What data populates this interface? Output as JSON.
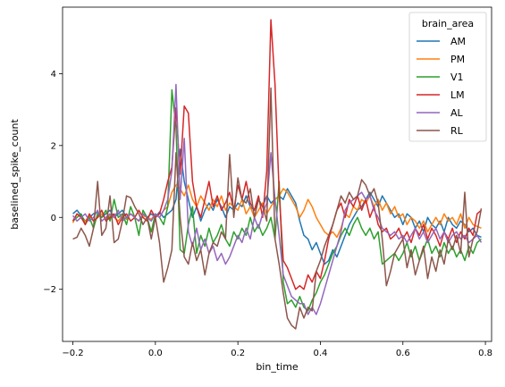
{
  "chart_data": {
    "type": "line",
    "title": "",
    "xlabel": "bin_time",
    "ylabel": "baselined_spike_count",
    "xlim": [
      -0.225,
      0.815
    ],
    "ylim": [
      -3.45,
      5.85
    ],
    "xticks": [
      -0.2,
      0.0,
      0.2,
      0.4,
      0.6,
      0.8
    ],
    "xtick_labels": [
      "−0.2",
      "0.0",
      "0.2",
      "0.4",
      "0.6",
      "0.8"
    ],
    "yticks": [
      -2,
      0,
      2,
      4
    ],
    "ytick_labels": [
      "−2",
      "0",
      "2",
      "4"
    ],
    "grid": false,
    "legend": {
      "title": "brain_area",
      "placement": "top-right"
    },
    "x_start": -0.2,
    "x_step": 0.01,
    "series": [
      {
        "name": "AM",
        "color": "#1f77b4",
        "values": [
          0.1,
          0.2,
          0.05,
          -0.1,
          0.0,
          0.1,
          0.15,
          0.0,
          0.1,
          0.2,
          0.0,
          0.1,
          0.2,
          0.0,
          0.1,
          0.0,
          -0.1,
          0.1,
          0.0,
          0.1,
          0.0,
          0.15,
          0.0,
          0.1,
          0.2,
          0.5,
          1.9,
          1.0,
          0.5,
          0.0,
          0.3,
          -0.1,
          0.2,
          0.4,
          0.2,
          0.5,
          0.3,
          0.0,
          0.3,
          0.2,
          0.4,
          0.3,
          0.6,
          0.3,
          0.2,
          0.5,
          0.3,
          0.6,
          0.4,
          0.5,
          0.6,
          0.5,
          0.8,
          0.6,
          0.4,
          -0.1,
          -0.5,
          -0.6,
          -0.9,
          -0.7,
          -1.0,
          -1.3,
          -1.2,
          -0.9,
          -1.1,
          -0.8,
          -0.5,
          -0.2,
          0.0,
          0.2,
          0.3,
          0.5,
          0.7,
          0.5,
          0.3,
          0.6,
          0.4,
          0.2,
          0.0,
          0.1,
          -0.2,
          0.1,
          0.0,
          -0.3,
          -0.1,
          -0.4,
          0.0,
          -0.2,
          -0.3,
          -0.1,
          -0.4,
          0.0,
          -0.2,
          -0.3,
          -0.1,
          -0.2,
          -0.4,
          -0.3,
          -0.5,
          -0.55
        ]
      },
      {
        "name": "PM",
        "color": "#ff7f0e",
        "values": [
          -0.15,
          0.1,
          0.0,
          -0.1,
          0.05,
          -0.1,
          0.0,
          0.1,
          -0.05,
          0.05,
          0.0,
          -0.1,
          0.05,
          -0.05,
          0.1,
          0.0,
          -0.1,
          0.05,
          0.0,
          -0.05,
          0.1,
          0.0,
          0.2,
          0.3,
          0.7,
          0.9,
          0.8,
          0.6,
          0.9,
          0.5,
          0.3,
          0.6,
          0.4,
          0.2,
          0.5,
          0.3,
          0.6,
          0.2,
          0.4,
          0.3,
          0.2,
          0.5,
          0.1,
          0.3,
          0.0,
          0.2,
          0.4,
          0.1,
          0.3,
          0.5,
          0.6,
          0.8,
          0.7,
          0.5,
          0.3,
          0.0,
          0.2,
          0.5,
          0.3,
          0.0,
          -0.2,
          -0.4,
          -0.5,
          -0.4,
          -0.55,
          -0.3,
          0.1,
          0.0,
          0.3,
          0.2,
          0.5,
          0.4,
          0.6,
          0.3,
          0.5,
          0.2,
          0.4,
          0.1,
          0.3,
          0.0,
          0.1,
          -0.2,
          0.0,
          -0.1,
          -0.3,
          -0.1,
          -0.4,
          -0.2,
          0.0,
          -0.2,
          0.1,
          -0.1,
          0.0,
          -0.2,
          0.1,
          -0.3,
          0.0,
          -0.2,
          -0.25,
          -0.3
        ]
      },
      {
        "name": "V1",
        "color": "#2ca02c",
        "values": [
          -0.1,
          0.0,
          0.1,
          -0.2,
          0.0,
          -0.3,
          0.1,
          0.0,
          0.2,
          -0.1,
          0.5,
          0.0,
          0.1,
          -0.2,
          0.3,
          0.0,
          -0.5,
          0.2,
          0.0,
          -0.4,
          0.1,
          0.0,
          -0.2,
          0.3,
          3.55,
          2.5,
          -0.9,
          -1.0,
          -0.2,
          0.3,
          -1.0,
          -0.5,
          -0.8,
          -0.3,
          -0.7,
          -0.5,
          -0.2,
          -0.6,
          -0.8,
          -0.4,
          -0.6,
          -0.3,
          -0.5,
          0.0,
          -0.4,
          -0.2,
          -0.5,
          -0.3,
          0.0,
          -0.6,
          1.0,
          -1.8,
          -2.4,
          -2.3,
          -2.5,
          -2.2,
          -2.5,
          -2.6,
          -2.3,
          -2.1,
          -1.8,
          -1.6,
          -1.3,
          -1.0,
          -0.8,
          -0.5,
          -0.3,
          -0.5,
          -0.2,
          0.0,
          -0.3,
          -0.5,
          -0.3,
          -0.6,
          -0.4,
          -1.3,
          -1.2,
          -1.1,
          -1.0,
          -1.2,
          -1.0,
          -0.7,
          -1.1,
          -0.8,
          -1.2,
          -0.9,
          -0.6,
          -1.0,
          -0.8,
          -1.1,
          -0.7,
          -1.0,
          -0.8,
          -1.1,
          -0.9,
          -1.2,
          -0.8,
          -1.0,
          -0.7,
          -0.6
        ]
      },
      {
        "name": "LM",
        "color": "#d62728",
        "values": [
          -0.1,
          0.1,
          0.0,
          -0.2,
          0.1,
          -0.1,
          0.0,
          0.2,
          -0.1,
          0.0,
          0.1,
          -0.2,
          0.0,
          0.1,
          -0.1,
          0.0,
          0.2,
          0.0,
          -0.1,
          0.2,
          0.0,
          0.1,
          0.5,
          1.0,
          1.4,
          3.05,
          1.2,
          3.1,
          2.9,
          1.0,
          0.3,
          0.0,
          0.5,
          1.0,
          0.3,
          0.6,
          0.2,
          0.4,
          0.7,
          0.2,
          0.9,
          0.5,
          1.0,
          0.4,
          0.2,
          0.6,
          0.0,
          1.3,
          5.5,
          3.7,
          0.7,
          -1.2,
          -1.4,
          -1.7,
          -2.0,
          -1.9,
          -2.0,
          -1.6,
          -1.8,
          -1.5,
          -1.7,
          -1.2,
          -0.6,
          -0.2,
          0.2,
          0.4,
          0.0,
          0.5,
          0.3,
          0.6,
          0.2,
          0.5,
          0.0,
          0.3,
          -0.2,
          -0.4,
          -0.3,
          -0.6,
          -0.5,
          -0.3,
          -0.6,
          -0.4,
          -0.7,
          -0.3,
          -0.5,
          -0.2,
          -0.6,
          -0.3,
          -0.5,
          -0.8,
          -0.4,
          -0.6,
          -0.3,
          -0.7,
          -0.4,
          -0.6,
          -0.3,
          -0.5,
          0.1,
          0.2
        ]
      },
      {
        "name": "AL",
        "color": "#9467bd",
        "values": [
          0.05,
          -0.1,
          0.0,
          0.1,
          -0.1,
          0.0,
          0.2,
          -0.1,
          0.0,
          0.1,
          0.0,
          0.2,
          -0.1,
          0.0,
          0.1,
          0.0,
          -0.1,
          0.1,
          0.0,
          -0.1,
          0.1,
          0.0,
          0.2,
          0.5,
          1.3,
          3.7,
          0.5,
          2.2,
          -0.4,
          -0.8,
          -0.3,
          -0.9,
          -0.6,
          -1.0,
          -0.8,
          -1.2,
          -1.0,
          -1.3,
          -1.1,
          -0.8,
          -0.5,
          -0.7,
          -0.3,
          -0.6,
          0.0,
          -0.3,
          0.1,
          0.4,
          1.8,
          0.5,
          -0.5,
          -1.6,
          -1.9,
          -2.2,
          -2.3,
          -2.4,
          -2.4,
          -2.7,
          -2.5,
          -2.7,
          -2.4,
          -2.0,
          -1.6,
          -1.2,
          -0.8,
          -0.4,
          0.2,
          0.4,
          0.5,
          0.6,
          0.7,
          0.5,
          0.6,
          0.2,
          0.0,
          -0.3,
          -0.4,
          -0.5,
          -0.4,
          -0.6,
          -0.5,
          -0.7,
          -0.5,
          -0.3,
          -0.6,
          -0.4,
          -0.7,
          -0.5,
          -0.3,
          -0.6,
          -0.4,
          -0.7,
          -0.5,
          -0.4,
          -0.6,
          -0.5,
          -0.7,
          -0.6,
          -0.5,
          -0.7
        ]
      },
      {
        "name": "RL",
        "color": "#8c564b",
        "values": [
          -0.6,
          -0.55,
          -0.3,
          -0.5,
          -0.8,
          -0.3,
          1.0,
          -0.5,
          -0.3,
          0.6,
          -0.7,
          -0.6,
          -0.1,
          0.6,
          0.55,
          0.3,
          0.1,
          -0.2,
          0.0,
          -0.6,
          0.0,
          -0.7,
          -1.8,
          -1.4,
          -0.9,
          1.8,
          0.0,
          -1.1,
          -1.3,
          -0.7,
          -1.2,
          -0.9,
          -1.6,
          -1.0,
          -0.7,
          -0.8,
          -0.4,
          -0.6,
          1.75,
          0.0,
          1.1,
          0.5,
          0.4,
          0.8,
          0.0,
          0.5,
          0.3,
          -0.1,
          3.6,
          -0.6,
          -1.3,
          -2.1,
          -2.8,
          -3.0,
          -3.1,
          -2.5,
          -2.8,
          -2.5,
          -2.6,
          -1.5,
          -1.2,
          -0.8,
          -0.5,
          -0.2,
          0.2,
          0.6,
          0.4,
          0.7,
          0.5,
          0.6,
          1.05,
          0.9,
          0.6,
          0.8,
          0.4,
          -0.6,
          -1.9,
          -1.5,
          -1.0,
          -0.8,
          -0.6,
          -1.4,
          -0.9,
          -1.6,
          -1.2,
          -0.8,
          -1.7,
          -1.1,
          -1.5,
          -0.9,
          -1.3,
          -0.6,
          -0.9,
          -0.5,
          -1.0,
          0.7,
          -1.1,
          -0.6,
          -0.4,
          0.25
        ]
      }
    ]
  }
}
